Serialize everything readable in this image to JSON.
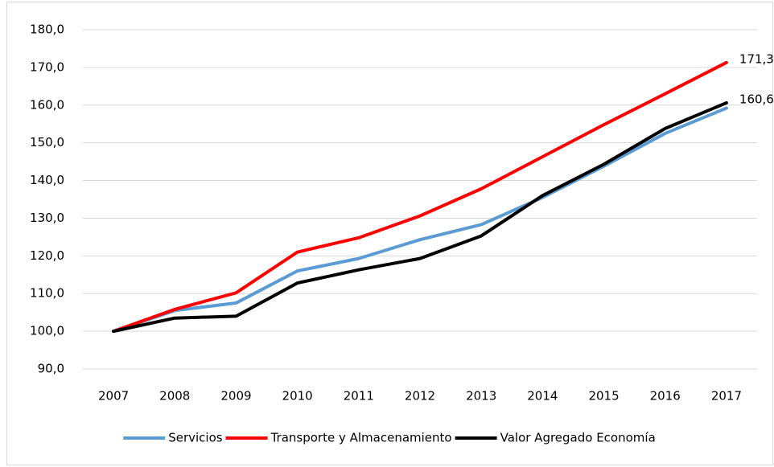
{
  "chart_data": {
    "type": "line",
    "categories": [
      "2007",
      "2008",
      "2009",
      "2010",
      "2011",
      "2012",
      "2013",
      "2014",
      "2015",
      "2016",
      "2017"
    ],
    "series": [
      {
        "name": "Servicios",
        "color": "#5b9bd5",
        "values": [
          100,
          105.5,
          107.5,
          116,
          119.3,
          124.3,
          128.3,
          135.5,
          143.8,
          152.5,
          159.2
        ]
      },
      {
        "name": "Transporte y Almacenamiento",
        "color": "#ff0000",
        "values": [
          100,
          105.8,
          110.2,
          121,
          124.8,
          130.6,
          137.8,
          146.3,
          154.8,
          163,
          171.3
        ],
        "value_labels": [
          null,
          null,
          null,
          null,
          null,
          null,
          null,
          null,
          null,
          null,
          "171,3"
        ]
      },
      {
        "name": "Valor Agregado Economía",
        "color": "#000000",
        "values": [
          100,
          103.5,
          104,
          112.8,
          116.3,
          119.3,
          125.3,
          136,
          144.3,
          153.8,
          160.6
        ],
        "value_labels": [
          null,
          null,
          null,
          null,
          null,
          null,
          null,
          null,
          null,
          null,
          "160,6"
        ]
      }
    ],
    "ylim": [
      90,
      180
    ],
    "yticks": [
      {
        "value": 90,
        "label": "90,0"
      },
      {
        "value": 100,
        "label": "100,0"
      },
      {
        "value": 110,
        "label": "110,0"
      },
      {
        "value": 120,
        "label": "120,0"
      },
      {
        "value": 130,
        "label": "130,0"
      },
      {
        "value": 140,
        "label": "140,0"
      },
      {
        "value": 150,
        "label": "150,0"
      },
      {
        "value": 160,
        "label": "160,0"
      },
      {
        "value": 170,
        "label": "170,0"
      },
      {
        "value": 180,
        "label": "180,0"
      }
    ],
    "grid": true,
    "legend": "bottom"
  }
}
